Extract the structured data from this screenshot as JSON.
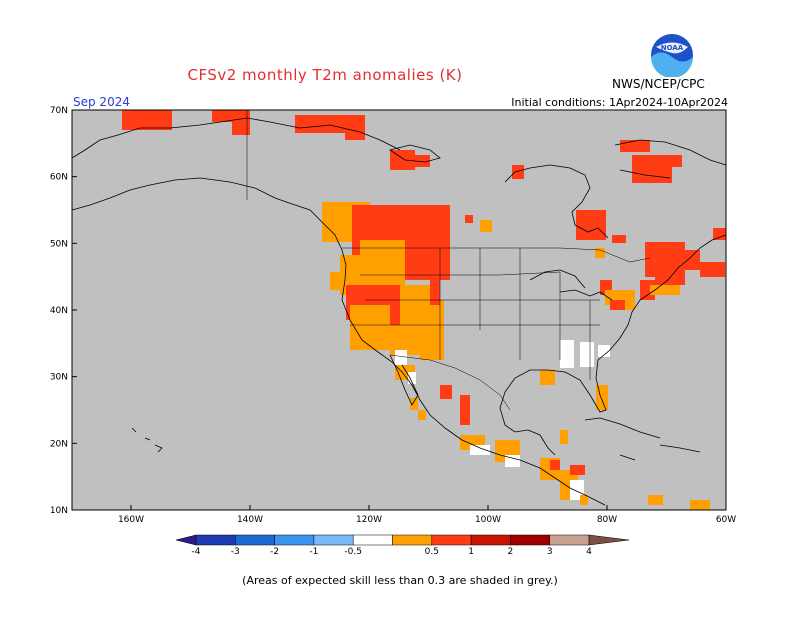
{
  "title": "CFSv2 monthly T2m anomalies (K)",
  "month": "Sep 2024",
  "initial_conditions": "Initial conditions: 1Apr2024-10Apr2024",
  "agency": "NWS/NCEP/CPC",
  "logo_text": "NOAA",
  "footnote": "(Areas of expected skill less than 0.3 are shaded in grey.)",
  "axes": {
    "lat_labels": [
      "70N",
      "60N",
      "50N",
      "40N",
      "30N",
      "20N",
      "10N"
    ],
    "lon_labels": [
      "160W",
      "140W",
      "120W",
      "100W",
      "80W",
      "60W"
    ]
  },
  "colorbar": {
    "labels": [
      "-4",
      "-3",
      "-2",
      "-1",
      "-0.5",
      "0.5",
      "1",
      "2",
      "3",
      "4"
    ],
    "colors": [
      "#2d1a8c",
      "#1e3cb4",
      "#1e6ad2",
      "#3c96f0",
      "#78b9fa",
      "#ffffff",
      "#ffa000",
      "#ff3c14",
      "#c81400",
      "#a00000",
      "#c8a090",
      "#7a5040"
    ]
  },
  "colors": {
    "skill_grey": "#c0c0c0",
    "warm_05_1": "#ffa000",
    "warm_1_2": "#ff3c14",
    "near_zero": "#ffffff"
  }
}
